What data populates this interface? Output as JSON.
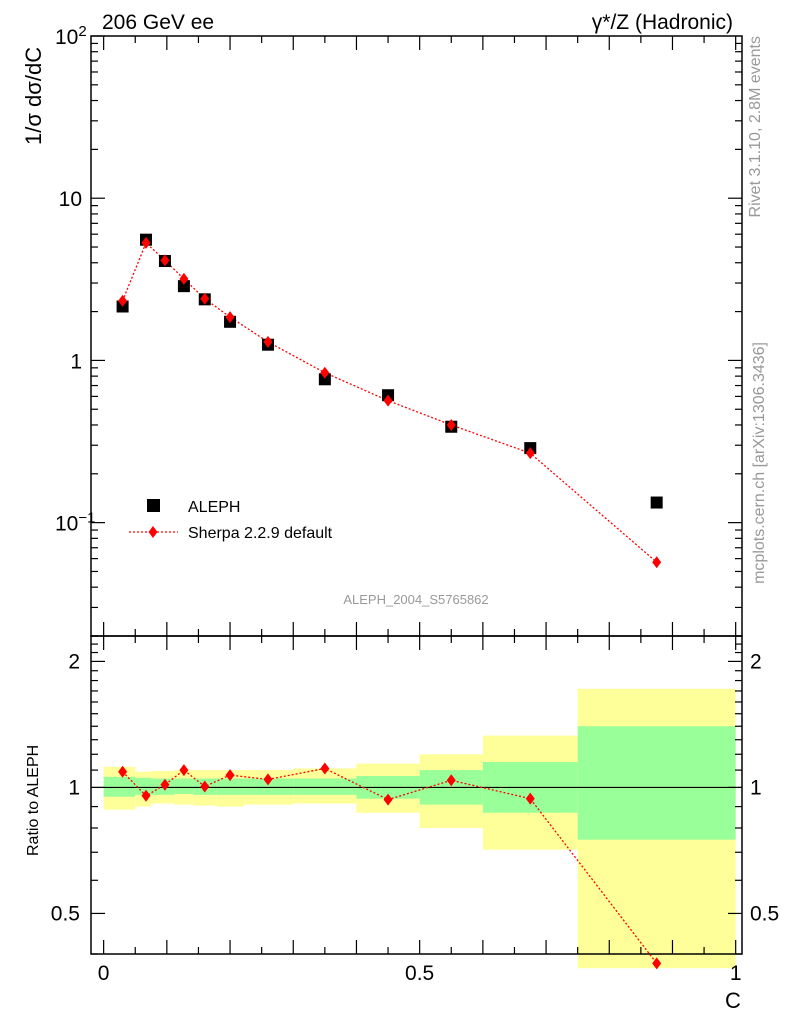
{
  "header": {
    "left_title": "206 GeV ee",
    "right_title": "γ*/Z (Hadronic)"
  },
  "side_labels": {
    "top": "Rivet 3.1.10,  2.8M events",
    "bottom": "mcplots.cern.ch [arXiv:1306.3436]"
  },
  "watermark": "ALEPH_2004_S5765862",
  "main_ylabel": "1/σ  dσ/dC",
  "ratio_ylabel": "Ratio to ALEPH",
  "xlabel": "C",
  "main_yticks": [
    {
      "label": "10",
      "exp": "2",
      "value": 100
    },
    {
      "label": "10",
      "exp": "",
      "value": 10
    },
    {
      "label": "1",
      "exp": "",
      "value": 1
    },
    {
      "label": "10",
      "exp": "−1",
      "value": 0.1
    }
  ],
  "ratio_yticks": [
    {
      "label": "2",
      "value": 2
    },
    {
      "label": "1",
      "value": 1
    },
    {
      "label": "0.5",
      "value": 0.5
    }
  ],
  "xticks": [
    {
      "label": "0",
      "value": 0
    },
    {
      "label": "0.5",
      "value": 0.5
    },
    {
      "label": "1",
      "value": 1
    }
  ],
  "legend": [
    {
      "name": "ALEPH",
      "marker": "square",
      "color": "#000000"
    },
    {
      "name": "Sherpa 2.2.9 default",
      "marker": "diamond",
      "color": "#ff0000"
    }
  ],
  "colors": {
    "data": "#000000",
    "mc": "#ff0000",
    "band_inner": "#99ff99",
    "band_outer": "#ffff99"
  },
  "chart_data": {
    "type": "scatter",
    "x": [
      0.03,
      0.067,
      0.097,
      0.127,
      0.16,
      0.2,
      0.26,
      0.35,
      0.45,
      0.55,
      0.675,
      0.875
    ],
    "xlim": [
      -0.02,
      1.01
    ],
    "main_ylim": [
      0.02,
      100
    ],
    "main_yscale": "log",
    "ratio_ylim": [
      0.4,
      2.3
    ],
    "ratio_yscale": "log",
    "series": [
      {
        "name": "ALEPH",
        "values": [
          2.15,
          5.55,
          4.1,
          2.87,
          2.38,
          1.73,
          1.25,
          0.765,
          0.61,
          0.39,
          0.288,
          0.133
        ]
      },
      {
        "name": "Sherpa 2.2.9 default",
        "values": [
          2.33,
          5.3,
          4.14,
          3.18,
          2.4,
          1.85,
          1.3,
          0.84,
          0.565,
          0.4,
          0.268,
          0.057
        ]
      }
    ],
    "ratio_values": [
      1.09,
      0.955,
      1.015,
      1.1,
      1.005,
      1.07,
      1.045,
      1.11,
      0.935,
      1.04,
      0.94,
      0.38
    ],
    "bands": [
      {
        "x0": 0.0,
        "x1": 0.05,
        "inner": [
          0.95,
          1.06
        ],
        "outer": [
          0.885,
          1.12
        ]
      },
      {
        "x0": 0.05,
        "x1": 0.075,
        "inner": [
          0.96,
          1.055
        ],
        "outer": [
          0.9,
          1.09
        ]
      },
      {
        "x0": 0.075,
        "x1": 0.112,
        "inner": [
          0.96,
          1.05
        ],
        "outer": [
          0.915,
          1.095
        ]
      },
      {
        "x0": 0.112,
        "x1": 0.142,
        "inner": [
          0.965,
          1.05
        ],
        "outer": [
          0.91,
          1.1
        ]
      },
      {
        "x0": 0.142,
        "x1": 0.178,
        "inner": [
          0.96,
          1.05
        ],
        "outer": [
          0.905,
          1.1
        ]
      },
      {
        "x0": 0.178,
        "x1": 0.222,
        "inner": [
          0.96,
          1.05
        ],
        "outer": [
          0.9,
          1.1
        ]
      },
      {
        "x0": 0.222,
        "x1": 0.3,
        "inner": [
          0.96,
          1.05
        ],
        "outer": [
          0.91,
          1.1
        ]
      },
      {
        "x0": 0.3,
        "x1": 0.4,
        "inner": [
          0.96,
          1.05
        ],
        "outer": [
          0.915,
          1.11
        ]
      },
      {
        "x0": 0.4,
        "x1": 0.5,
        "inner": [
          0.94,
          1.065
        ],
        "outer": [
          0.87,
          1.14
        ]
      },
      {
        "x0": 0.5,
        "x1": 0.6,
        "inner": [
          0.91,
          1.1
        ],
        "outer": [
          0.8,
          1.2
        ]
      },
      {
        "x0": 0.6,
        "x1": 0.75,
        "inner": [
          0.87,
          1.15
        ],
        "outer": [
          0.71,
          1.33
        ]
      },
      {
        "x0": 0.75,
        "x1": 1.0,
        "inner": [
          0.75,
          1.4
        ],
        "outer": [
          0.37,
          1.72
        ]
      }
    ]
  }
}
